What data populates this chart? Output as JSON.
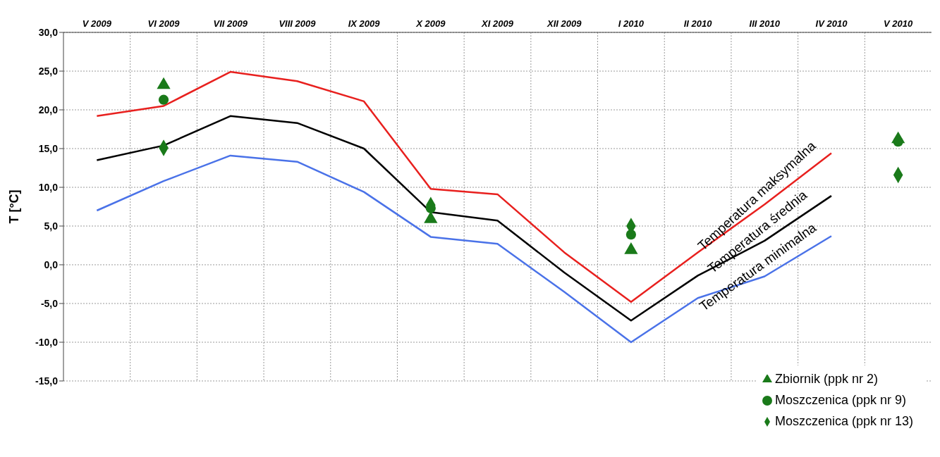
{
  "chart_data": {
    "type": "line",
    "ylabel": "T [°C]",
    "categories": [
      "V 2009",
      "VI 2009",
      "VII 2009",
      "VIII 2009",
      "IX 2009",
      "X 2009",
      "XI 2009",
      "XII 2009",
      "I 2010",
      "II 2010",
      "III 2010",
      "IV 2010",
      "V 2010"
    ],
    "series": [
      {
        "name": "Temperatura maksymalna",
        "color": "#e8201e",
        "marker": "none",
        "values": [
          19.2,
          20.5,
          24.9,
          23.7,
          21.1,
          9.8,
          9.1,
          1.6,
          -4.8,
          1.6,
          7.8,
          14.4,
          null
        ]
      },
      {
        "name": "Temperatura średnia",
        "color": "#000000",
        "marker": "none",
        "values": [
          13.5,
          15.4,
          19.2,
          18.3,
          15.0,
          6.8,
          5.7,
          -1.0,
          -7.2,
          -1.4,
          3.1,
          8.9,
          null
        ]
      },
      {
        "name": "Temperatura minimalna",
        "color": "#4a72e8",
        "marker": "none",
        "values": [
          7.0,
          10.8,
          14.1,
          13.3,
          9.4,
          3.6,
          2.7,
          -3.5,
          -10.0,
          -4.3,
          -1.5,
          3.7,
          null
        ]
      },
      {
        "name": "Zbiornik (ppk nr 2)",
        "type": "scatter",
        "color": "#1a7a1a",
        "marker": "triangle",
        "values": [
          null,
          23.2,
          null,
          null,
          null,
          5.9,
          null,
          null,
          1.9,
          null,
          null,
          null,
          16.2
        ]
      },
      {
        "name": "Moszczenica (ppk nr 9)",
        "type": "scatter",
        "color": "#1a7a1a",
        "marker": "circle",
        "values": [
          null,
          21.3,
          null,
          null,
          null,
          7.3,
          null,
          null,
          3.9,
          null,
          null,
          null,
          15.9
        ]
      },
      {
        "name": "Moszczenica (ppk nr 13)",
        "type": "scatter",
        "color": "#1a7a1a",
        "marker": "diamond",
        "values": [
          null,
          15.1,
          null,
          null,
          null,
          7.7,
          null,
          null,
          5.0,
          null,
          null,
          null,
          11.6
        ]
      }
    ],
    "ylim": [
      -15,
      30
    ],
    "yticks": [
      {
        "value": -15,
        "label": "-15,0"
      },
      {
        "value": -10,
        "label": "-10,0"
      },
      {
        "value": -5,
        "label": "-5,0"
      },
      {
        "value": 0,
        "label": "0,0"
      },
      {
        "value": 5,
        "label": "5,0"
      },
      {
        "value": 10,
        "label": "10,0"
      },
      {
        "value": 15,
        "label": "15,0"
      },
      {
        "value": 20,
        "label": "20,0"
      },
      {
        "value": 25,
        "label": "25,0"
      },
      {
        "value": 30,
        "label": "30,0"
      }
    ],
    "grid": true,
    "legend": "bottom right"
  }
}
